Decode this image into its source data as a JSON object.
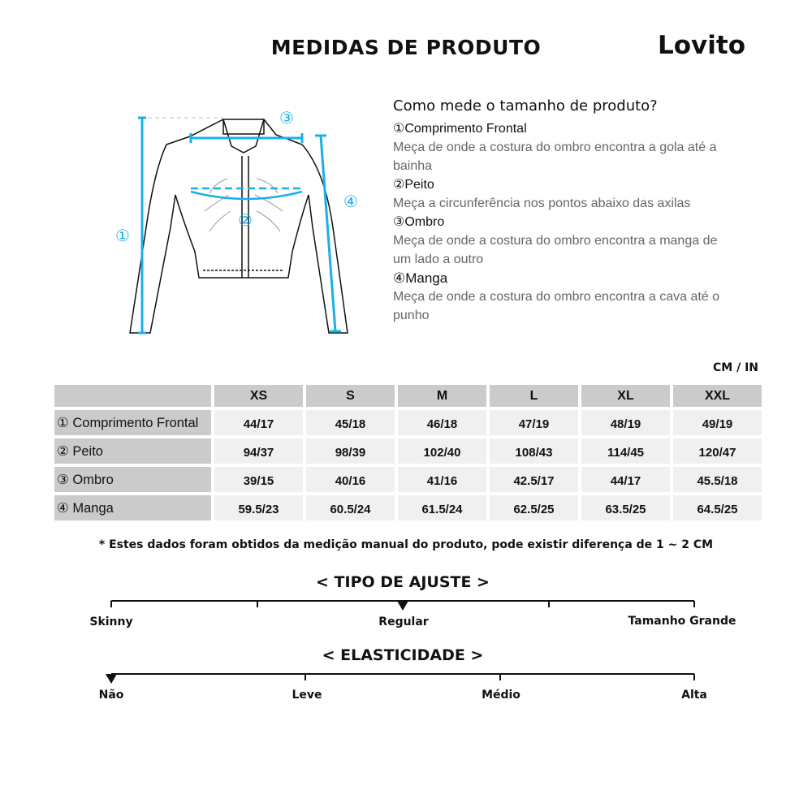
{
  "header": {
    "title": "MEDIDAS DE PRODUTO",
    "brand": "Lovito"
  },
  "diagram": {
    "markers": [
      "①",
      "②",
      "③",
      "④"
    ],
    "accent_color": "#1ab0e6"
  },
  "howto": {
    "heading": "Como mede o tamanho de produto?",
    "items": [
      {
        "label": "①Comprimento Frontal",
        "desc": "Meça de onde a costura do ombro encontra a gola até a bainha"
      },
      {
        "label": "②Peito",
        "desc": "Meça a circunferência nos pontos abaixo das axilas"
      },
      {
        "label": "③Ombro",
        "desc": "Meça de onde a costura do ombro encontra a manga de um lado a outro"
      },
      {
        "label": "④Manga",
        "desc": "Meça de onde a costura do ombro encontra a cava até o punho"
      }
    ]
  },
  "table": {
    "unit": "CM / IN",
    "columns": [
      "XS",
      "S",
      "M",
      "L",
      "XL",
      "XXL"
    ],
    "rows": [
      {
        "label": "① Comprimento Frontal",
        "values": [
          "44/17",
          "45/18",
          "46/18",
          "47/19",
          "48/19",
          "49/19"
        ]
      },
      {
        "label": "② Peito",
        "values": [
          "94/37",
          "98/39",
          "102/40",
          "108/43",
          "114/45",
          "120/47"
        ]
      },
      {
        "label": "③ Ombro",
        "values": [
          "39/15",
          "40/16",
          "41/16",
          "42.5/17",
          "44/17",
          "45.5/18"
        ]
      },
      {
        "label": "④ Manga",
        "values": [
          "59.5/23",
          "60.5/24",
          "61.5/24",
          "62.5/25",
          "63.5/25",
          "64.5/25"
        ]
      }
    ]
  },
  "note": "* Estes dados foram obtidos da medição manual do produto, pode existir diferença de 1 ~ 2 CM",
  "fit": {
    "title": "< TIPO DE AJUSTE >",
    "labels": [
      "Skinny",
      "Regular",
      "Tamanho Grande"
    ],
    "selected": "Regular"
  },
  "elasticity": {
    "title": "< ELASTICIDADE >",
    "labels": [
      "Não",
      "Leve",
      "Médio",
      "Alta"
    ],
    "selected": "Não"
  }
}
